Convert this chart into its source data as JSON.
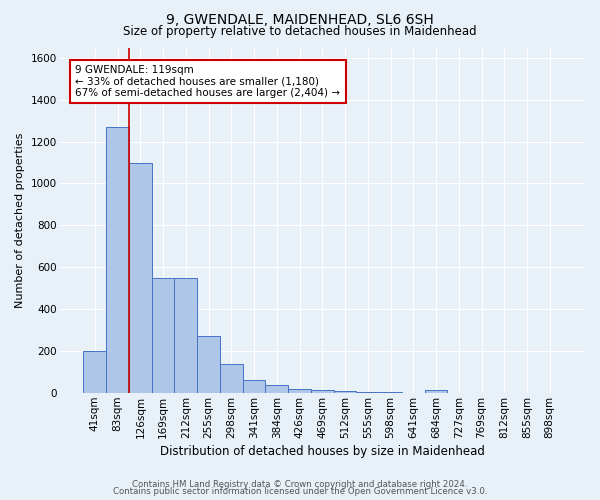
{
  "title": "9, GWENDALE, MAIDENHEAD, SL6 6SH",
  "subtitle": "Size of property relative to detached houses in Maidenhead",
  "xlabel": "Distribution of detached houses by size in Maidenhead",
  "ylabel": "Number of detached properties",
  "footer_line1": "Contains HM Land Registry data © Crown copyright and database right 2024.",
  "footer_line2": "Contains public sector information licensed under the Open Government Licence v3.0.",
  "categories": [
    "41sqm",
    "83sqm",
    "126sqm",
    "169sqm",
    "212sqm",
    "255sqm",
    "298sqm",
    "341sqm",
    "384sqm",
    "426sqm",
    "469sqm",
    "512sqm",
    "555sqm",
    "598sqm",
    "641sqm",
    "684sqm",
    "727sqm",
    "769sqm",
    "812sqm",
    "855sqm",
    "898sqm"
  ],
  "values": [
    197,
    1270,
    1100,
    550,
    550,
    270,
    135,
    60,
    35,
    18,
    12,
    8,
    5,
    4,
    0,
    15,
    0,
    0,
    0,
    0,
    0
  ],
  "bar_color": "#aec6e8",
  "bar_edge_color": "#4472c4",
  "bg_color": "#e8f0f8",
  "grid_color": "#ffffff",
  "red_line_x": 1.5,
  "annotation_text": "9 GWENDALE: 119sqm\n← 33% of detached houses are smaller (1,180)\n67% of semi-detached houses are larger (2,404) →",
  "annotation_box_color": "#ffffff",
  "annotation_box_edge": "#cc0000",
  "ylim": [
    0,
    1650
  ],
  "yticks": [
    0,
    200,
    400,
    600,
    800,
    1000,
    1200,
    1400,
    1600
  ],
  "title_fontsize": 10,
  "subtitle_fontsize": 8.5,
  "xlabel_fontsize": 8.5,
  "ylabel_fontsize": 8,
  "tick_fontsize": 7.5,
  "footer_fontsize": 6.2
}
